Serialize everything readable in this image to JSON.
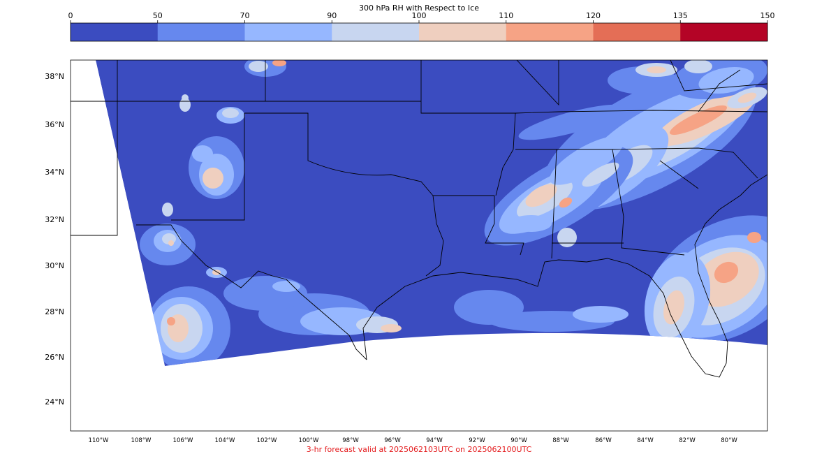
{
  "colorbar": {
    "title": "300 hPa RH with Respect to Ice",
    "ticks": [
      "0",
      "50",
      "70",
      "90",
      "100",
      "110",
      "120",
      "135",
      "150"
    ],
    "colors": [
      "#3b4cc0",
      "#6688ee",
      "#96b7ff",
      "#c8d6f0",
      "#efcfbf",
      "#f6a385",
      "#e46e56",
      "#b40426"
    ]
  },
  "map": {
    "land_background": "#3b4cc0",
    "outline_color": "#000000",
    "lat_labels": [
      "38°N",
      "36°N",
      "34°N",
      "32°N",
      "30°N",
      "28°N",
      "26°N",
      "24°N"
    ],
    "lon_labels": [
      "110°W",
      "108°W",
      "106°W",
      "104°W",
      "102°W",
      "100°W",
      "98°W",
      "96°W",
      "94°W",
      "92°W",
      "90°W",
      "88°W",
      "86°W",
      "84°W",
      "82°W",
      "80°W"
    ]
  },
  "footer": {
    "text": "3-hr forecast valid at 2025062103UTC on 2025062100UTC",
    "color": "#e41a1c"
  }
}
